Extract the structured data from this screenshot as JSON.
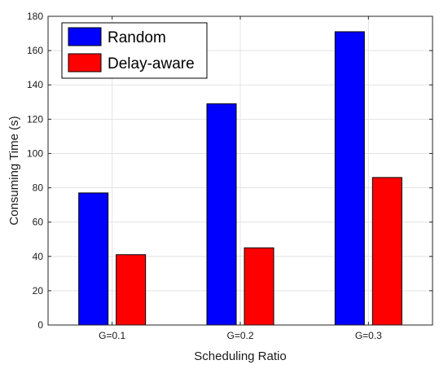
{
  "chart_data": {
    "type": "bar",
    "categories": [
      "G=0.1",
      "G=0.2",
      "G=0.3"
    ],
    "series": [
      {
        "name": "Random",
        "values": [
          77,
          129,
          171
        ],
        "color": "#0000ff"
      },
      {
        "name": "Delay-aware",
        "values": [
          41,
          45,
          86
        ],
        "color": "#ff0000"
      }
    ],
    "title": "",
    "xlabel": "Scheduling Ratio",
    "ylabel": "Consuming Time (s)",
    "ylim": [
      0,
      180
    ],
    "yticks": [
      0,
      20,
      40,
      60,
      80,
      100,
      120,
      140,
      160,
      180
    ],
    "grid": true,
    "legend_position": "top-left"
  }
}
